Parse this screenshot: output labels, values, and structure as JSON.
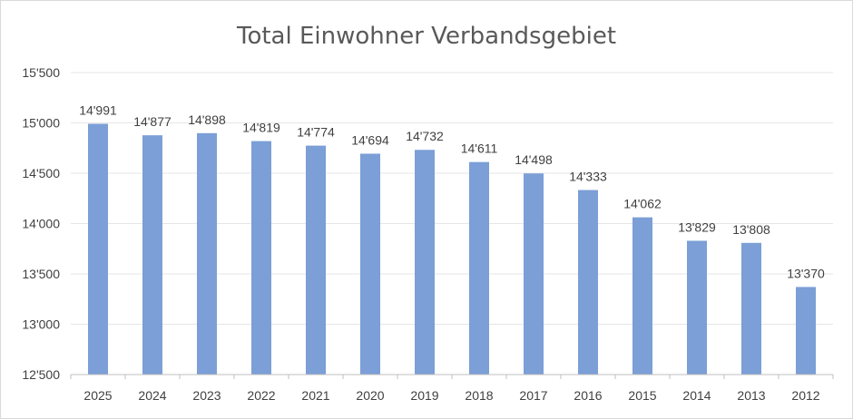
{
  "chart_data": {
    "type": "bar",
    "title": "Total Einwohner Verbandsgebiet",
    "xlabel": "",
    "ylabel": "",
    "categories": [
      "2025",
      "2024",
      "2023",
      "2022",
      "2021",
      "2020",
      "2019",
      "2018",
      "2017",
      "2016",
      "2015",
      "2014",
      "2013",
      "2012"
    ],
    "values": [
      14991,
      14877,
      14898,
      14819,
      14774,
      14694,
      14732,
      14611,
      14498,
      14333,
      14062,
      13829,
      13808,
      13370
    ],
    "data_labels": [
      "14'991",
      "14'877",
      "14'898",
      "14'819",
      "14'774",
      "14'694",
      "14'732",
      "14'611",
      "14'498",
      "14'333",
      "14'062",
      "13'829",
      "13'808",
      "13'370"
    ],
    "ylim": [
      12500,
      15500
    ],
    "yticks": [
      12500,
      13000,
      13500,
      14000,
      14500,
      15000,
      15500
    ],
    "ytick_labels": [
      "12'500",
      "13'000",
      "13'500",
      "14'000",
      "14'500",
      "15'000",
      "15'500"
    ],
    "grid": true,
    "legend": "none",
    "bar_color": "#7b9fd6"
  }
}
